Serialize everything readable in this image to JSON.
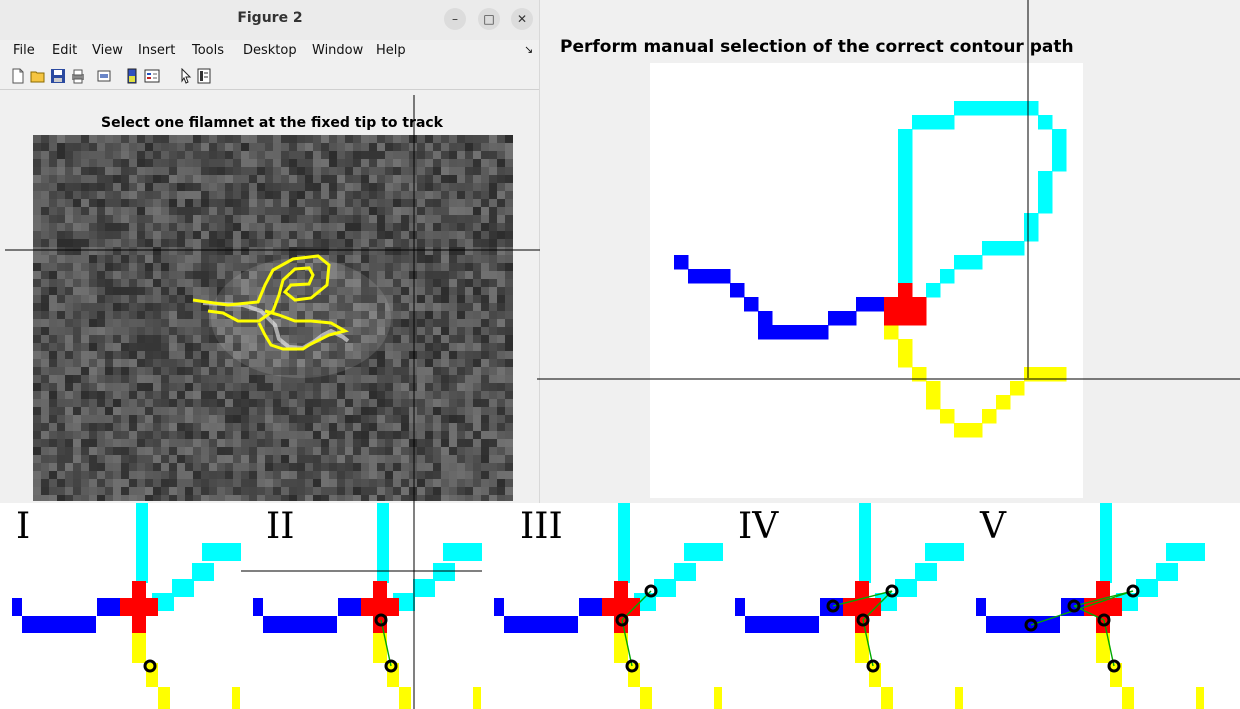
{
  "window": {
    "title": "Figure 2",
    "controls": {
      "minimize": "–",
      "maximize": "□",
      "close": "✕"
    },
    "menu": [
      "File",
      "Edit",
      "View",
      "Insert",
      "Tools",
      "Desktop",
      "Window",
      "Help"
    ],
    "menu_arrow": "↘",
    "toolbar_icons": [
      "new-figure-icon",
      "open-file-icon",
      "save-icon",
      "print-icon",
      "print-preview-icon",
      "colorbar-icon",
      "legend-icon",
      "pointer-icon",
      "property-inspector-icon"
    ],
    "axes_title": "Select one filamnet at the fixed tip to track"
  },
  "plot": {
    "title": "Perform manual selection of the correct contour path"
  },
  "panels": [
    {
      "label": "I"
    },
    {
      "label": "II"
    },
    {
      "label": "III"
    },
    {
      "label": "IV"
    },
    {
      "label": "V"
    }
  ],
  "colors": {
    "cyan": "#00ffff",
    "blue": "#0000ff",
    "red": "#ff0000",
    "yellow": "#ffff00",
    "overlay_yellow": "#ffff00",
    "crosshair": "#000000",
    "marker": "#000000",
    "connector": "#00aa00"
  }
}
